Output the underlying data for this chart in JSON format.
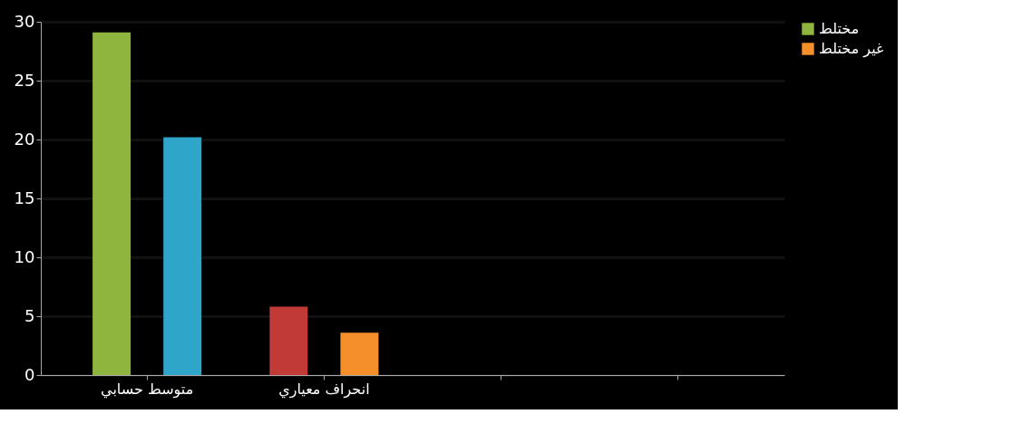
{
  "chart_data": {
    "type": "bar",
    "categories": [
      "متوسط حسابي",
      "انحراف معياري",
      null,
      null
    ],
    "series": [
      {
        "name": "مختلط",
        "color": "#8fb53e",
        "colors": [
          "#8fb53e",
          "#c23a37",
          null,
          null
        ],
        "values": [
          29.1,
          5.8,
          null,
          null
        ]
      },
      {
        "name": "غير مختلط",
        "color": "#f58f2a",
        "colors": [
          "#2fa6c9",
          "#f58f2a",
          null,
          null
        ],
        "values": [
          20.2,
          3.6,
          null,
          null
        ]
      }
    ],
    "ylim": [
      0,
      30
    ],
    "yticks": [
      0,
      5,
      10,
      15,
      20,
      25,
      30
    ],
    "grid": "y",
    "legend": "right"
  }
}
